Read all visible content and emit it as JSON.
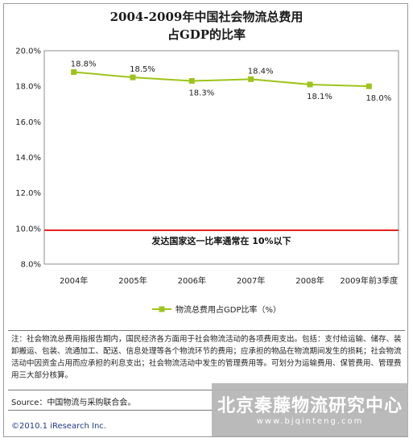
{
  "chart_data": {
    "type": "line",
    "title_line1": "2004-2009年中国社会物流总费用",
    "title_line2": "占GDP的比率",
    "categories": [
      "2004年",
      "2005年",
      "2006年",
      "2007年",
      "2008年",
      "2009年前3季度"
    ],
    "series": [
      {
        "name": "物流总费用占GDP比率（%）",
        "values": [
          18.8,
          18.5,
          18.3,
          18.4,
          18.1,
          18.0
        ],
        "color": "#9dc41a"
      }
    ],
    "data_labels": [
      "18.8%",
      "18.5%",
      "18.3%",
      "18.4%",
      "18.1%",
      "18.0%"
    ],
    "y_ticks": [
      "8.0%",
      "10.0%",
      "12.0%",
      "14.0%",
      "16.0%",
      "18.0%",
      "20.0%"
    ],
    "ylim": [
      8.0,
      20.0
    ],
    "reference_line": {
      "value": 9.9,
      "color": "#e8231c",
      "annotation": "发达国家这一比率通常在 10%以下"
    },
    "legend_position": "bottom"
  },
  "note": "注：社会物流总费用指报告期内，国民经济各方面用于社会物流活动的各项费用支出。包括：支付给运输、储存、装卸搬运、包装、流通加工、配送、信息处理等各个物流环节的费用；应承担的物品在物流期间发生的损耗；社会物流活动中因资金占用而应承担的利息支出；社会物流活动中发生的管理费用等。可划分为运输费用、保管费用、管理费用三大部分核算。",
  "source": "Source：中国物流与采购联合会。",
  "copyright": "©2010.1 iResearch Inc.",
  "watermark": {
    "text": "北京秦藤物流研究中心",
    "url": "www.bjqinteng.com"
  }
}
